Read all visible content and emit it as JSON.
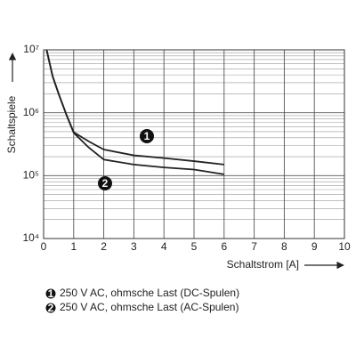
{
  "chart_data": {
    "type": "line",
    "xlabel": "Schaltstrom [A]",
    "ylabel": "Schaltspiele",
    "xlim": [
      0,
      10
    ],
    "xticks": [
      0,
      1,
      2,
      3,
      4,
      5,
      6,
      7,
      8,
      9,
      10
    ],
    "ylim": [
      10000,
      10000000
    ],
    "log_y": true,
    "grid": true,
    "minor_grid": true,
    "yticks": [
      {
        "value": 10000,
        "label": "10⁴"
      },
      {
        "value": 100000,
        "label": "10⁵"
      },
      {
        "value": 1000000,
        "label": "10⁶"
      },
      {
        "value": 10000000,
        "label": "10⁷"
      }
    ],
    "series": [
      {
        "name": "250 V AC, ohmsche Last (DC-Spulen)",
        "label": "1",
        "color": "#222222",
        "x": [
          0.1,
          0.3,
          0.5,
          0.75,
          1,
          1.5,
          2,
          3,
          4,
          5,
          6
        ],
        "values": [
          10000000,
          3800000,
          2000000,
          950000,
          490000,
          350000,
          260000,
          210000,
          190000,
          170000,
          150000
        ]
      },
      {
        "name": "250 V AC, ohmsche Last (AC-Spulen)",
        "label": "2",
        "color": "#222222",
        "x": [
          0.1,
          0.3,
          0.5,
          0.75,
          1,
          1.5,
          2,
          3,
          4,
          5,
          6
        ],
        "values": [
          10000000,
          3800000,
          2000000,
          950000,
          480000,
          280000,
          180000,
          150000,
          135000,
          125000,
          105000
        ]
      }
    ]
  }
}
